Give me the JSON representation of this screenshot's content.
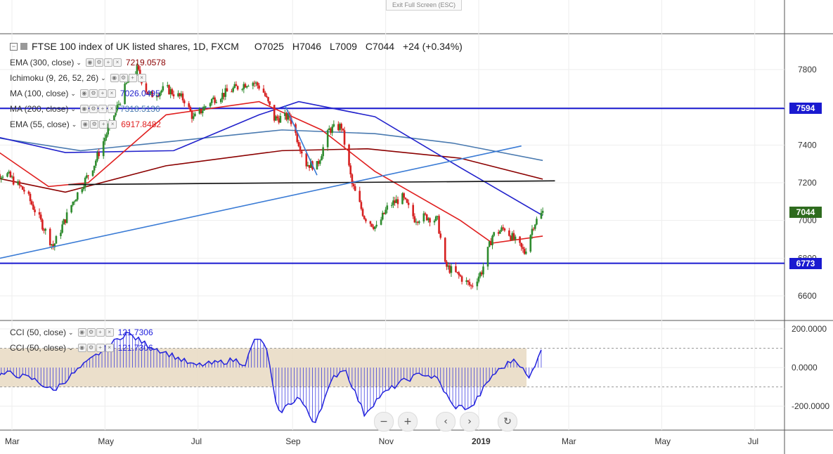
{
  "header": {
    "title": "FTSE 100 index of UK listed shares, 1D, FXCM",
    "open": "O7025",
    "high": "H7046",
    "low": "L7009",
    "close": "C7044",
    "change": "+24 (+0.34%)",
    "exit_fullscreen": "Exit Full Screen (ESC)"
  },
  "indicators": [
    {
      "label": "EMA (300, close)",
      "value": "7219.0578",
      "color": "#8b0000"
    },
    {
      "label": "Ichimoku (9, 26, 52, 26)",
      "value": "",
      "color": "#777777"
    },
    {
      "label": "MA (100, close)",
      "value": "7026.0495",
      "color": "#2222cc"
    },
    {
      "label": "MA (200, close)",
      "value": "7318.5136",
      "color": "#4a7ab0"
    },
    {
      "label": "EMA (55, close)",
      "value": "6917.8482",
      "color": "#e02020"
    }
  ],
  "cci_legend": [
    {
      "label": "CCI (50, close)",
      "value": "121.7306"
    },
    {
      "label": "CCI (50, close)",
      "value": "121.7306"
    }
  ],
  "price_badges": {
    "upper": "7594",
    "current": "7044",
    "lower": "6773"
  },
  "colors": {
    "up": "#2e8b2e",
    "down": "#d62020",
    "h_line": "#1a1ad0",
    "support": "#111111",
    "trend": "#3a7bd5",
    "cci_band": "#e9dcc5",
    "cci_line": "#2222dd",
    "badge_green": "#2e6b1e",
    "badge_blue": "#1a1ad0"
  },
  "nav_buttons": [
    "−",
    "+",
    "‹",
    "›",
    "↻"
  ],
  "chart_data": {
    "type": "candlestick",
    "price_axis": {
      "ticks": [
        6600,
        6800,
        7000,
        7200,
        7400,
        7600,
        7800
      ],
      "range": [
        6460,
        7950
      ]
    },
    "cci_axis": {
      "ticks": [
        "200.0000",
        "0.0000",
        "-200.0000"
      ],
      "range": [
        -310,
        205
      ]
    },
    "time_axis": {
      "labels": [
        "Mar",
        "May",
        "Jul",
        "Sep",
        "Nov",
        "2019",
        "Mar",
        "May",
        "Jul"
      ],
      "dates": [
        "2018-03-01",
        "2018-05-01",
        "2018-07-01",
        "2018-09-01",
        "2018-11-01",
        "2019-01-01",
        "2019-03-01",
        "2019-05-01",
        "2019-07-01"
      ],
      "bold": [
        false,
        false,
        false,
        false,
        false,
        true,
        false,
        false,
        false
      ]
    },
    "horizontal_levels": [
      7594,
      6773
    ],
    "support_line": {
      "from": [
        "2018-04-07",
        7190
      ],
      "to": [
        "2019-02-20",
        7210
      ]
    },
    "trend_lines": [
      {
        "from": [
          "2018-02-10",
          6780
        ],
        "to": [
          "2019-01-29",
          7395
        ]
      },
      {
        "from": [
          "2018-08-27",
          7610
        ],
        "to": [
          "2018-09-17",
          7240
        ]
      }
    ],
    "cci_band": [
      -100,
      100
    ],
    "price_path": [
      [
        "2018-02-10",
        7230
      ],
      [
        "2018-02-25",
        7250
      ],
      [
        "2018-03-10",
        7150
      ],
      [
        "2018-03-22",
        6960
      ],
      [
        "2018-03-28",
        6860
      ],
      [
        "2018-04-10",
        7100
      ],
      [
        "2018-04-24",
        7300
      ],
      [
        "2018-05-04",
        7500
      ],
      [
        "2018-05-15",
        7720
      ],
      [
        "2018-05-22",
        7800
      ],
      [
        "2018-05-30",
        7660
      ],
      [
        "2018-06-10",
        7700
      ],
      [
        "2018-06-22",
        7640
      ],
      [
        "2018-06-28",
        7540
      ],
      [
        "2018-07-10",
        7640
      ],
      [
        "2018-07-25",
        7700
      ],
      [
        "2018-08-05",
        7740
      ],
      [
        "2018-08-12",
        7700
      ],
      [
        "2018-08-20",
        7540
      ],
      [
        "2018-08-30",
        7550
      ],
      [
        "2018-09-10",
        7300
      ],
      [
        "2018-09-17",
        7290
      ],
      [
        "2018-09-25",
        7480
      ],
      [
        "2018-10-03",
        7500
      ],
      [
        "2018-10-10",
        7190
      ],
      [
        "2018-10-18",
        7020
      ],
      [
        "2018-10-26",
        6960
      ],
      [
        "2018-11-03",
        7080
      ],
      [
        "2018-11-12",
        7120
      ],
      [
        "2018-11-20",
        7010
      ],
      [
        "2018-11-28",
        7020
      ],
      [
        "2018-12-05",
        7000
      ],
      [
        "2018-12-10",
        6760
      ],
      [
        "2018-12-20",
        6700
      ],
      [
        "2018-12-27",
        6650
      ],
      [
        "2019-01-03",
        6730
      ],
      [
        "2019-01-10",
        6920
      ],
      [
        "2019-01-18",
        6960
      ],
      [
        "2019-01-25",
        6890
      ],
      [
        "2019-01-31",
        6830
      ],
      [
        "2019-02-06",
        6980
      ],
      [
        "2019-02-12",
        7044
      ]
    ],
    "series": [
      {
        "name": "EMA (300, close)",
        "value": 7219.0578,
        "points": [
          [
            "2018-02-10",
            7240
          ],
          [
            "2018-04-05",
            7150
          ],
          [
            "2018-06-10",
            7290
          ],
          [
            "2018-08-25",
            7370
          ],
          [
            "2018-10-20",
            7380
          ],
          [
            "2018-12-20",
            7330
          ],
          [
            "2019-02-12",
            7219
          ]
        ]
      },
      {
        "name": "MA (200, close)",
        "value": 7318.5136,
        "points": [
          [
            "2018-02-10",
            7450
          ],
          [
            "2018-04-15",
            7370
          ],
          [
            "2018-06-15",
            7420
          ],
          [
            "2018-08-25",
            7480
          ],
          [
            "2018-10-25",
            7460
          ],
          [
            "2018-12-15",
            7410
          ],
          [
            "2019-02-12",
            7318
          ]
        ]
      },
      {
        "name": "MA (100, close)",
        "value": 7026.0495,
        "points": [
          [
            "2018-02-10",
            7460
          ],
          [
            "2018-04-05",
            7360
          ],
          [
            "2018-06-15",
            7370
          ],
          [
            "2018-08-10",
            7560
          ],
          [
            "2018-09-05",
            7630
          ],
          [
            "2018-10-25",
            7550
          ],
          [
            "2018-12-20",
            7280
          ],
          [
            "2019-02-12",
            7026
          ]
        ]
      },
      {
        "name": "EMA (55, close)",
        "value": 6917.8482,
        "points": [
          [
            "2018-02-10",
            7420
          ],
          [
            "2018-03-25",
            7180
          ],
          [
            "2018-04-20",
            7200
          ],
          [
            "2018-06-10",
            7560
          ],
          [
            "2018-08-10",
            7630
          ],
          [
            "2018-09-20",
            7480
          ],
          [
            "2018-10-25",
            7260
          ],
          [
            "2018-12-20",
            7000
          ],
          [
            "2019-01-10",
            6880
          ],
          [
            "2019-02-12",
            6917
          ]
        ]
      }
    ],
    "cci": [
      [
        "2018-02-10",
        -50
      ],
      [
        "2018-02-28",
        -30
      ],
      [
        "2018-03-15",
        -60
      ],
      [
        "2018-03-28",
        -120
      ],
      [
        "2018-04-12",
        -20
      ],
      [
        "2018-04-28",
        80
      ],
      [
        "2018-05-15",
        180
      ],
      [
        "2018-05-28",
        120
      ],
      [
        "2018-06-15",
        60
      ],
      [
        "2018-06-28",
        10
      ],
      [
        "2018-07-10",
        20
      ],
      [
        "2018-07-25",
        40
      ],
      [
        "2018-08-01",
        20
      ],
      [
        "2018-08-08",
        160
      ],
      [
        "2018-08-15",
        100
      ],
      [
        "2018-08-22",
        -240
      ],
      [
        "2018-09-05",
        -150
      ],
      [
        "2018-09-15",
        -290
      ],
      [
        "2018-09-28",
        -50
      ],
      [
        "2018-10-05",
        0
      ],
      [
        "2018-10-18",
        -240
      ],
      [
        "2018-10-28",
        -150
      ],
      [
        "2018-11-10",
        -80
      ],
      [
        "2018-11-25",
        -30
      ],
      [
        "2018-12-05",
        -60
      ],
      [
        "2018-12-15",
        -200
      ],
      [
        "2018-12-27",
        -210
      ],
      [
        "2019-01-10",
        -40
      ],
      [
        "2019-01-25",
        50
      ],
      [
        "2019-02-03",
        -60
      ],
      [
        "2019-02-12",
        121.7306
      ]
    ]
  }
}
